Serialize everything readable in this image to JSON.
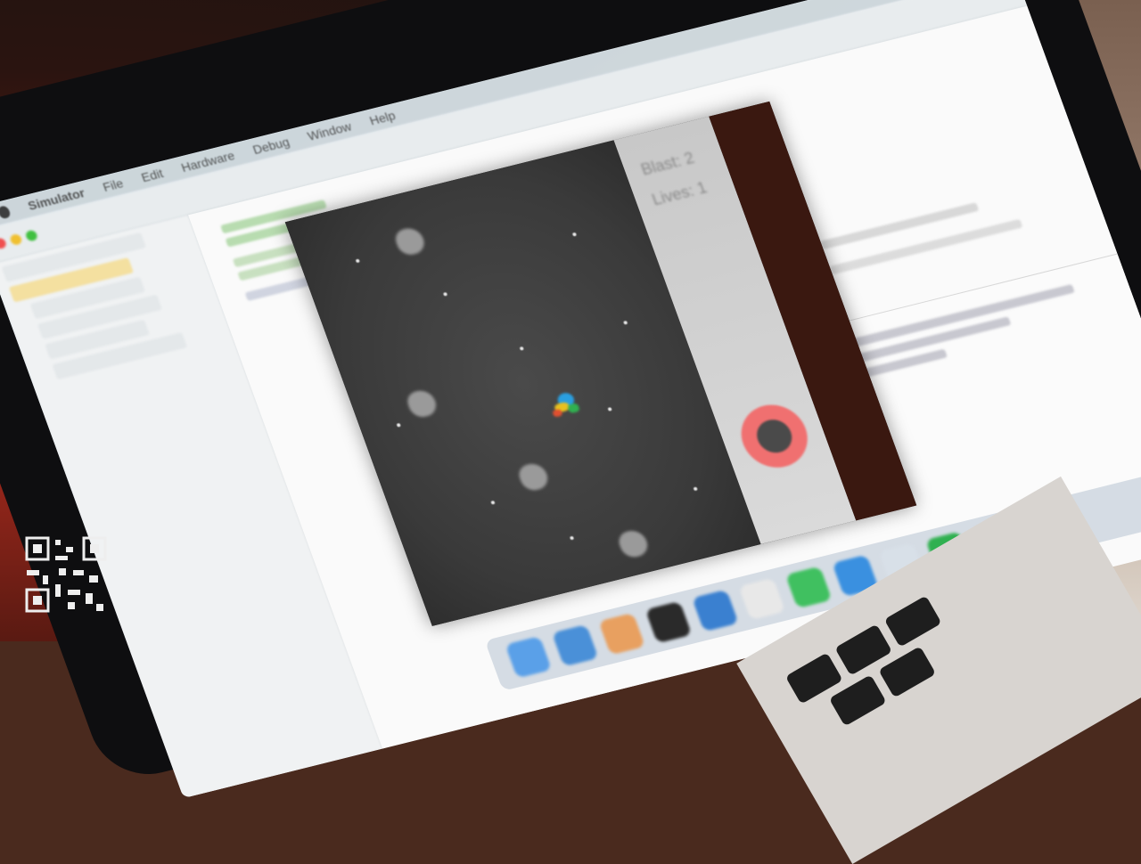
{
  "menubar": {
    "items": [
      "Simulator",
      "File",
      "Edit",
      "Hardware",
      "Debug",
      "Window",
      "Help"
    ]
  },
  "hud": {
    "line1": "Blast: 2",
    "line2": "Lives: 1"
  },
  "colors": {
    "game_bg": "#3a3a3a",
    "fire_button": "#f07070",
    "ship_blue": "#2a9fe0",
    "ship_yellow": "#e8c020",
    "ship_green": "#30b050"
  },
  "icons": [
    "apple-icon",
    "fire-button",
    "spaceship",
    "qr-code-icon"
  ]
}
